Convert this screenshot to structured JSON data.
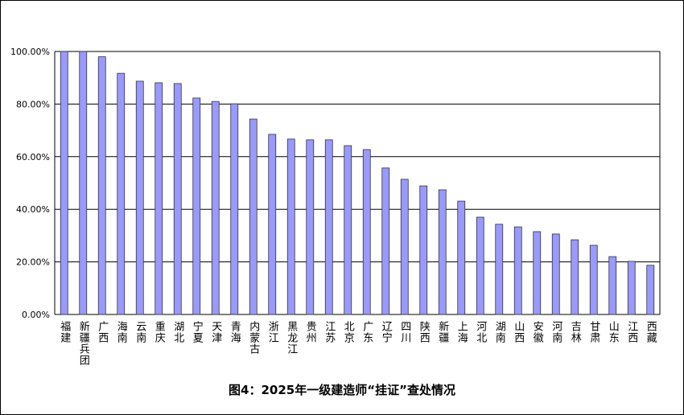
{
  "chart_data": {
    "type": "bar",
    "title": "图4：2025年一级建造师“挂证”查处情况",
    "categories": [
      "福建",
      "新疆兵团",
      "广西",
      "海南",
      "云南",
      "重庆",
      "湖北",
      "宁夏",
      "天津",
      "青海",
      "内蒙古",
      "浙江",
      "黑龙江",
      "贵州",
      "江苏",
      "北京",
      "广东",
      "辽宁",
      "四川",
      "陕西",
      "新疆",
      "上海",
      "河北",
      "湖南",
      "山西",
      "安徽",
      "河南",
      "吉林",
      "甘肃",
      "山东",
      "江西",
      "西藏"
    ],
    "values": [
      100,
      100,
      98,
      91.7,
      88.7,
      88.1,
      87.8,
      82.3,
      81,
      80.1,
      74.3,
      68.5,
      66.7,
      66.4,
      66.4,
      64.2,
      62.7,
      55.7,
      51.4,
      48.9,
      47.4,
      43.1,
      37,
      34.3,
      33.3,
      31.5,
      30.6,
      28.4,
      26.3,
      22,
      20.2,
      18.7
    ],
    "color": "#9999ff",
    "ylim": [
      0,
      100
    ],
    "yticks": [
      {
        "value": 0,
        "label": "0.00%"
      },
      {
        "value": 20,
        "label": "20.00%"
      },
      {
        "value": 40,
        "label": "40.00%"
      },
      {
        "value": 60,
        "label": "60.00%"
      },
      {
        "value": 80,
        "label": "80.00%"
      },
      {
        "value": 100,
        "label": "100.00%"
      }
    ],
    "grid": true
  }
}
